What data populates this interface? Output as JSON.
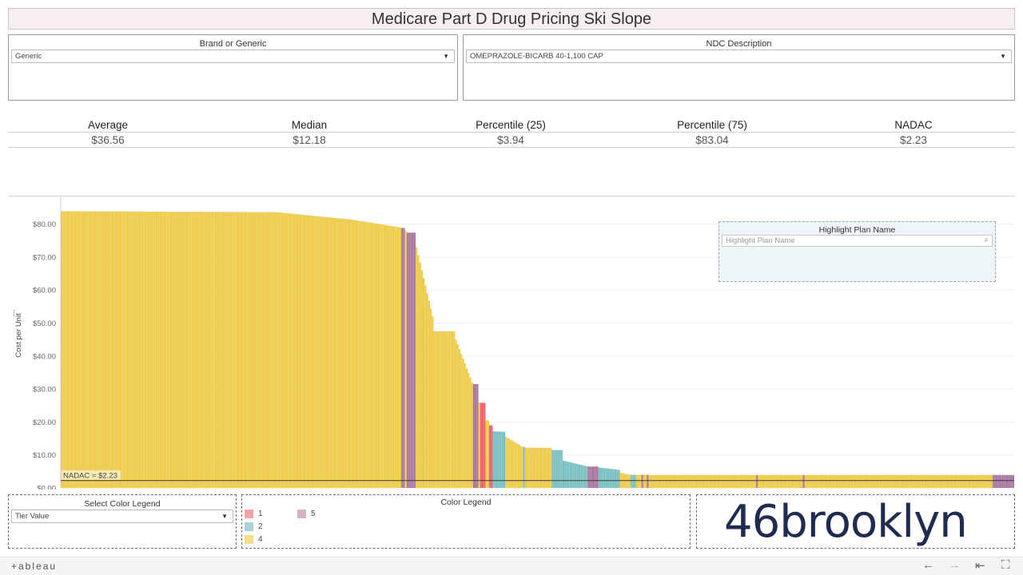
{
  "title": "Medicare Part D Drug Pricing Ski Slope",
  "filters": {
    "brand_generic": {
      "label": "Brand or Generic",
      "value": "Generic"
    },
    "ndc": {
      "label": "NDC Description",
      "value": "OMEPRAZOLE-BICARB 40-1,100 CAP"
    }
  },
  "kpis": [
    {
      "label": "Average",
      "value": "$36.56"
    },
    {
      "label": "Median",
      "value": "$12.18"
    },
    {
      "label": "Percentile (25)",
      "value": "$3.94"
    },
    {
      "label": "Percentile (75)",
      "value": "$83.04"
    },
    {
      "label": "NADAC",
      "value": "$2.23"
    }
  ],
  "highlight": {
    "label": "Highlight Plan Name",
    "placeholder": "Highlight Plan Name"
  },
  "color_legend_select": {
    "label": "Select Color Legend",
    "value": "Tier Value"
  },
  "color_legend": {
    "title": "Color Legend",
    "items": [
      {
        "label": "1",
        "color": "#f1a3a6"
      },
      {
        "label": "5",
        "color": "#d7b3c8"
      },
      {
        "label": "2",
        "color": "#a9d2d6"
      },
      {
        "label": "4",
        "color": "#f7dc8c"
      }
    ]
  },
  "logo_text": "46brooklyn",
  "footer": {
    "brand": "+ableau"
  },
  "chart_data": {
    "type": "bar",
    "ylabel": "Cost per Unit",
    "ylim": [
      0,
      84
    ],
    "yticks": [
      "$0.00",
      "$10.00",
      "$20.00",
      "$30.00",
      "$40.00",
      "$50.00",
      "$60.00",
      "$70.00",
      "$80.00"
    ],
    "reference_line": {
      "label": "NADAC = $2.23",
      "value": 2.23
    },
    "tier_colors": {
      "1": "#e8636c",
      "2": "#79c0c0",
      "4": "#eecb4a",
      "5": "#a8779f"
    },
    "segments": [
      {
        "n": 120,
        "from": 83.9,
        "to": 83.6,
        "tier": "4"
      },
      {
        "n": 40,
        "from": 83.6,
        "to": 81.5,
        "tier": "4"
      },
      {
        "n": 30,
        "from": 81.5,
        "to": 79.0,
        "tier": "4"
      },
      {
        "n": 2,
        "from": 78.8,
        "to": 78.8,
        "tier": "5"
      },
      {
        "n": 1,
        "from": 78.0,
        "to": 78.0,
        "tier": "4"
      },
      {
        "n": 5,
        "from": 77.4,
        "to": 77.4,
        "tier": "5"
      },
      {
        "n": 10,
        "from": 73.0,
        "to": 52.0,
        "tier": "4"
      },
      {
        "n": 12,
        "from": 47.5,
        "to": 47.5,
        "tier": "4"
      },
      {
        "n": 10,
        "from": 45.0,
        "to": 32.0,
        "tier": "4"
      },
      {
        "n": 3,
        "from": 31.5,
        "to": 31.5,
        "tier": "5"
      },
      {
        "n": 1,
        "from": 26.0,
        "to": 26.0,
        "tier": "4"
      },
      {
        "n": 3,
        "from": 25.8,
        "to": 25.8,
        "tier": "1"
      },
      {
        "n": 2,
        "from": 20.5,
        "to": 20.5,
        "tier": "4"
      },
      {
        "n": 2,
        "from": 19.0,
        "to": 19.0,
        "tier": "1"
      },
      {
        "n": 7,
        "from": 17.2,
        "to": 17.0,
        "tier": "2"
      },
      {
        "n": 10,
        "from": 15.5,
        "to": 12.5,
        "tier": "4"
      },
      {
        "n": 1,
        "from": 12.5,
        "to": 12.5,
        "tier": "2"
      },
      {
        "n": 15,
        "from": 12.2,
        "to": 12.2,
        "tier": "4"
      },
      {
        "n": 6,
        "from": 11.5,
        "to": 11.5,
        "tier": "2"
      },
      {
        "n": 14,
        "from": 8.3,
        "to": 6.6,
        "tier": "2"
      },
      {
        "n": 6,
        "from": 6.5,
        "to": 6.5,
        "tier": "5"
      },
      {
        "n": 12,
        "from": 6.2,
        "to": 5.5,
        "tier": "2"
      },
      {
        "n": 6,
        "from": 4.6,
        "to": 4.0,
        "tier": "4"
      },
      {
        "n": 3,
        "from": 4.0,
        "to": 4.0,
        "tier": "2"
      },
      {
        "n": 3,
        "from": 4.0,
        "to": 4.0,
        "tier": "4"
      },
      {
        "n": 1,
        "from": 4.0,
        "to": 4.0,
        "tier": "5"
      },
      {
        "n": 2,
        "from": 4.0,
        "to": 4.0,
        "tier": "4"
      },
      {
        "n": 1,
        "from": 4.0,
        "to": 4.0,
        "tier": "5"
      },
      {
        "n": 60,
        "from": 3.94,
        "to": 3.94,
        "tier": "4"
      },
      {
        "n": 1,
        "from": 3.94,
        "to": 3.94,
        "tier": "5"
      },
      {
        "n": 25,
        "from": 3.94,
        "to": 3.94,
        "tier": "4"
      },
      {
        "n": 1,
        "from": 3.94,
        "to": 3.94,
        "tier": "5"
      },
      {
        "n": 105,
        "from": 3.94,
        "to": 3.94,
        "tier": "4"
      },
      {
        "n": 12,
        "from": 3.94,
        "to": 3.94,
        "tier": "5"
      }
    ]
  }
}
